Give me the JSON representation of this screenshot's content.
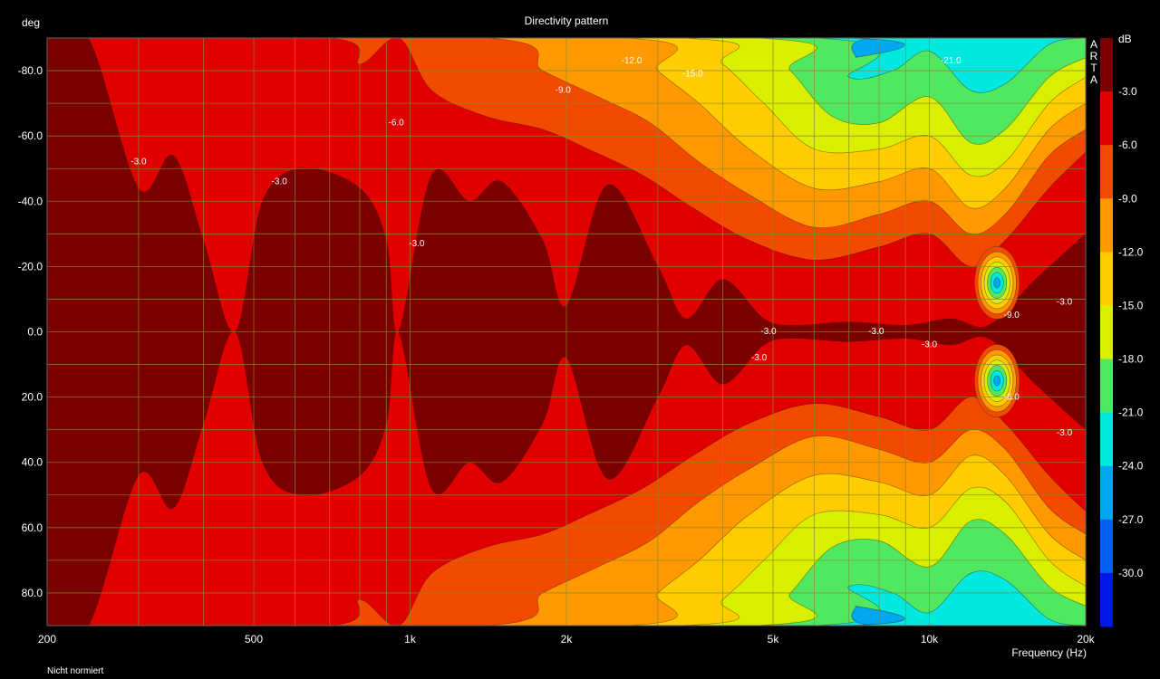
{
  "chart_data": {
    "type": "heatmap",
    "title": "Directivity pattern",
    "ylabel": "deg",
    "xlabel": "Frequency (Hz)",
    "footer_note": "Nicht normiert",
    "colorbar_unit": "dB",
    "colorbar_brand": [
      "A",
      "R",
      "T",
      "A"
    ],
    "x_scale": "log",
    "xlim": [
      200,
      20000
    ],
    "ylim": [
      -90,
      90
    ],
    "y_inverted": true,
    "grid": true,
    "x_ticks": [
      {
        "value": 200,
        "label": "200"
      },
      {
        "value": 500,
        "label": "500"
      },
      {
        "value": 1000,
        "label": "1k"
      },
      {
        "value": 2000,
        "label": "2k"
      },
      {
        "value": 5000,
        "label": "5k"
      },
      {
        "value": 10000,
        "label": "10k"
      },
      {
        "value": 20000,
        "label": "20k"
      }
    ],
    "y_ticks": [
      {
        "value": -80,
        "label": "-80.0"
      },
      {
        "value": -60,
        "label": "-60.0"
      },
      {
        "value": -40,
        "label": "-40.0"
      },
      {
        "value": -20,
        "label": "-20.0"
      },
      {
        "value": 0,
        "label": "0.0"
      },
      {
        "value": 20,
        "label": "20.0"
      },
      {
        "value": 40,
        "label": "40.0"
      },
      {
        "value": 60,
        "label": "60.0"
      },
      {
        "value": 80,
        "label": "80.0"
      }
    ],
    "levels": [
      {
        "value": 0,
        "label": "",
        "color": "#7a0000"
      },
      {
        "value": -3,
        "label": "-3.0",
        "color": "#e00000"
      },
      {
        "value": -6,
        "label": "-6.0",
        "color": "#f24a00"
      },
      {
        "value": -9,
        "label": "-9.0",
        "color": "#ff9900"
      },
      {
        "value": -12,
        "label": "-12.0",
        "color": "#ffcc00"
      },
      {
        "value": -15,
        "label": "-15.0",
        "color": "#d8f000"
      },
      {
        "value": -18,
        "label": "-18.0",
        "color": "#50e860"
      },
      {
        "value": -21,
        "label": "-21.0",
        "color": "#00e8e0"
      },
      {
        "value": -24,
        "label": "-24.0",
        "color": "#00a8f0"
      },
      {
        "value": -27,
        "label": "-27.0",
        "color": "#0060f0"
      },
      {
        "value": -30,
        "label": "-30.0",
        "color": "#0018e8"
      }
    ],
    "bounds": [
      {
        "name": "-3 dB",
        "level": -3,
        "points": [
          {
            "f": 200,
            "a": 90
          },
          {
            "f": 240,
            "a": 90
          },
          {
            "f": 300,
            "a": 44
          },
          {
            "f": 350,
            "a": 54
          },
          {
            "f": 400,
            "a": 28
          },
          {
            "f": 460,
            "a": 0
          },
          {
            "f": 520,
            "a": 40
          },
          {
            "f": 620,
            "a": 50
          },
          {
            "f": 800,
            "a": 44
          },
          {
            "f": 900,
            "a": 28
          },
          {
            "f": 950,
            "a": 0
          },
          {
            "f": 1100,
            "a": 48
          },
          {
            "f": 1300,
            "a": 40
          },
          {
            "f": 1500,
            "a": 46
          },
          {
            "f": 1800,
            "a": 28
          },
          {
            "f": 2000,
            "a": 8
          },
          {
            "f": 2400,
            "a": 45
          },
          {
            "f": 3000,
            "a": 20
          },
          {
            "f": 3400,
            "a": 4
          },
          {
            "f": 4000,
            "a": 16
          },
          {
            "f": 4800,
            "a": 4
          },
          {
            "f": 5500,
            "a": 2
          },
          {
            "f": 7000,
            "a": 3
          },
          {
            "f": 9000,
            "a": 2
          },
          {
            "f": 11000,
            "a": 4
          },
          {
            "f": 13000,
            "a": 2
          },
          {
            "f": 16000,
            "a": 16
          },
          {
            "f": 20000,
            "a": 30
          }
        ]
      },
      {
        "name": "-6 dB",
        "level": -6,
        "points": [
          {
            "f": 200,
            "a": 90
          },
          {
            "f": 700,
            "a": 90
          },
          {
            "f": 800,
            "a": 82
          },
          {
            "f": 950,
            "a": 90
          },
          {
            "f": 1100,
            "a": 74
          },
          {
            "f": 1400,
            "a": 66
          },
          {
            "f": 1800,
            "a": 62
          },
          {
            "f": 2200,
            "a": 56
          },
          {
            "f": 2800,
            "a": 48
          },
          {
            "f": 3500,
            "a": 38
          },
          {
            "f": 4500,
            "a": 28
          },
          {
            "f": 6000,
            "a": 22
          },
          {
            "f": 8000,
            "a": 26
          },
          {
            "f": 10000,
            "a": 30
          },
          {
            "f": 12000,
            "a": 20
          },
          {
            "f": 14000,
            "a": 28
          },
          {
            "f": 17000,
            "a": 44
          },
          {
            "f": 20000,
            "a": 55
          }
        ]
      },
      {
        "name": "-9 dB",
        "level": -9,
        "points": [
          {
            "f": 200,
            "a": 90
          },
          {
            "f": 1400,
            "a": 90
          },
          {
            "f": 1800,
            "a": 80
          },
          {
            "f": 2300,
            "a": 72
          },
          {
            "f": 2900,
            "a": 64
          },
          {
            "f": 3600,
            "a": 52
          },
          {
            "f": 4500,
            "a": 42
          },
          {
            "f": 6000,
            "a": 32
          },
          {
            "f": 8000,
            "a": 36
          },
          {
            "f": 10000,
            "a": 40
          },
          {
            "f": 12000,
            "a": 30
          },
          {
            "f": 14000,
            "a": 36
          },
          {
            "f": 17000,
            "a": 54
          },
          {
            "f": 20000,
            "a": 62
          }
        ]
      },
      {
        "name": "-12 dB",
        "level": -12,
        "points": [
          {
            "f": 200,
            "a": 90
          },
          {
            "f": 2600,
            "a": 90
          },
          {
            "f": 3000,
            "a": 80
          },
          {
            "f": 3600,
            "a": 70
          },
          {
            "f": 4500,
            "a": 56
          },
          {
            "f": 6000,
            "a": 44
          },
          {
            "f": 8000,
            "a": 46
          },
          {
            "f": 10000,
            "a": 50
          },
          {
            "f": 12000,
            "a": 38
          },
          {
            "f": 14000,
            "a": 44
          },
          {
            "f": 17000,
            "a": 62
          },
          {
            "f": 20000,
            "a": 70
          }
        ]
      },
      {
        "name": "-15 dB",
        "level": -15,
        "points": [
          {
            "f": 200,
            "a": 90
          },
          {
            "f": 3300,
            "a": 90
          },
          {
            "f": 4000,
            "a": 82
          },
          {
            "f": 4800,
            "a": 70
          },
          {
            "f": 6000,
            "a": 56
          },
          {
            "f": 8000,
            "a": 56
          },
          {
            "f": 10000,
            "a": 60
          },
          {
            "f": 12000,
            "a": 48
          },
          {
            "f": 14000,
            "a": 52
          },
          {
            "f": 17000,
            "a": 70
          },
          {
            "f": 20000,
            "a": 78
          }
        ]
      },
      {
        "name": "-18 dB",
        "level": -18,
        "points": [
          {
            "f": 200,
            "a": 90
          },
          {
            "f": 4600,
            "a": 90
          },
          {
            "f": 5400,
            "a": 80
          },
          {
            "f": 6500,
            "a": 66
          },
          {
            "f": 8000,
            "a": 64
          },
          {
            "f": 10000,
            "a": 72
          },
          {
            "f": 12000,
            "a": 58
          },
          {
            "f": 14000,
            "a": 62
          },
          {
            "f": 17000,
            "a": 78
          },
          {
            "f": 20000,
            "a": 84
          }
        ]
      },
      {
        "name": "-21 dB",
        "level": -21,
        "points": [
          {
            "f": 200,
            "a": 90
          },
          {
            "f": 6000,
            "a": 90
          },
          {
            "f": 7000,
            "a": 78
          },
          {
            "f": 8500,
            "a": 80
          },
          {
            "f": 10000,
            "a": 86
          },
          {
            "f": 12000,
            "a": 74
          },
          {
            "f": 14000,
            "a": 76
          },
          {
            "f": 17000,
            "a": 88
          },
          {
            "f": 20000,
            "a": 90
          }
        ]
      },
      {
        "name": "-24 dB",
        "level": -24,
        "points": [
          {
            "f": 200,
            "a": 90
          },
          {
            "f": 6800,
            "a": 90
          },
          {
            "f": 7200,
            "a": 84
          },
          {
            "f": 7800,
            "a": 90
          },
          {
            "f": 20000,
            "a": 90
          }
        ]
      }
    ],
    "nulls": [
      {
        "f": 13500,
        "a": -15,
        "r_pct": 3.5
      },
      {
        "f": 13500,
        "a": 15,
        "r_pct": 3.5
      }
    ],
    "contour_labels": [
      {
        "text": "-3.0",
        "f": 300,
        "a": -52
      },
      {
        "text": "-3.0",
        "f": 560,
        "a": -46
      },
      {
        "text": "-3.0",
        "f": 1030,
        "a": -27
      },
      {
        "text": "-6.0",
        "f": 940,
        "a": -64
      },
      {
        "text": "-9.0",
        "f": 1970,
        "a": -74
      },
      {
        "text": "-12.0",
        "f": 2670,
        "a": -83
      },
      {
        "text": "-15.0",
        "f": 3500,
        "a": -79
      },
      {
        "text": "-21.0",
        "f": 11000,
        "a": -83
      },
      {
        "text": "-3.0",
        "f": 4900,
        "a": 0
      },
      {
        "text": "-3.0",
        "f": 4700,
        "a": 8
      },
      {
        "text": "-3.0",
        "f": 7900,
        "a": 0
      },
      {
        "text": "-3.0",
        "f": 10000,
        "a": 4
      },
      {
        "text": "-3.0",
        "f": 18200,
        "a": -9
      },
      {
        "text": "-3.0",
        "f": 18200,
        "a": 31
      },
      {
        "text": "-9.0",
        "f": 14400,
        "a": -5
      },
      {
        "text": "-6.0",
        "f": 14400,
        "a": 20
      }
    ]
  }
}
